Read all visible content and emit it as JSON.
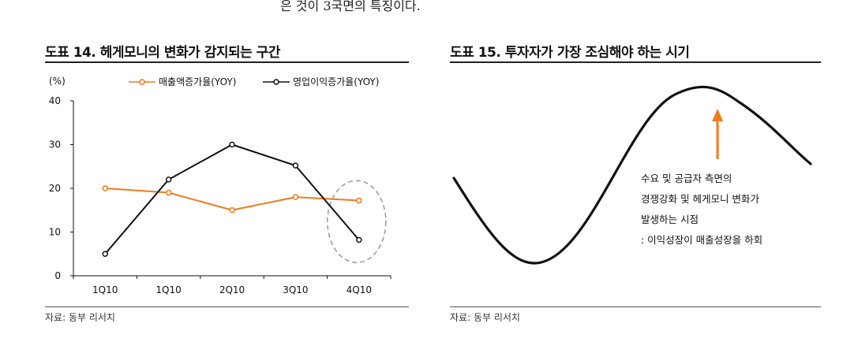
{
  "page": {
    "top_text": "은 것이 3국면의 특징이다."
  },
  "figure14": {
    "title": "도표 14. 헤게모니의 변화가 감지되는 구간",
    "source": "자료: 동부 리서치",
    "unit_label": "(%)",
    "colors": {
      "sales": "#f07a1c",
      "op": "#111111",
      "highlight": "#999999"
    }
  },
  "figure15": {
    "title": "도표 15. 투자자가 가장 조심해야 하는 시기",
    "source": "자료: 동부 리서치",
    "annotation_lines": [
      "수요 및 공급자 측면의",
      "경쟁강화 및 헤게모니 변화가",
      "발생하는 시점",
      ": 이익성장이 매출성장을 하회"
    ],
    "colors": {
      "curve": "#111111",
      "arrow": "#f07a1c"
    }
  },
  "chart_data": [
    {
      "type": "line",
      "categories": [
        "1Q10",
        "1Q10",
        "2Q10",
        "3Q10",
        "4Q10"
      ],
      "series": [
        {
          "name": "매출액증가율(YOY)",
          "values": [
            20,
            19,
            15,
            18,
            17.2
          ]
        },
        {
          "name": "영업이익증가율(YOY)",
          "values": [
            5,
            22,
            30,
            25.2,
            8.2
          ]
        }
      ],
      "ylim": [
        0,
        40
      ],
      "yticks": [
        0,
        10,
        20,
        30,
        40
      ],
      "legend_position": "top",
      "grid": false
    }
  ]
}
